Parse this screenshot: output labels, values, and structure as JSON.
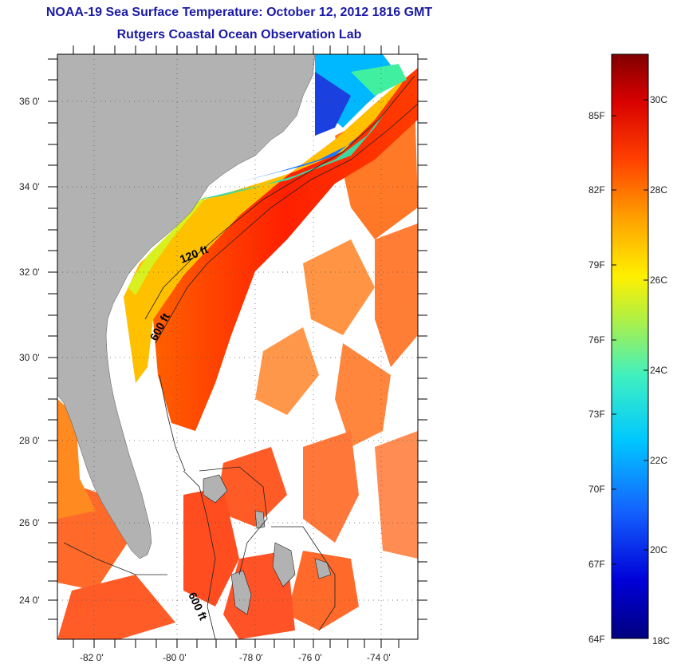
{
  "header": {
    "title": "NOAA-19 Sea Surface Temperature:  October 12, 2012 1816 GMT",
    "subtitle": "Rutgers Coastal Ocean Observation Lab"
  },
  "map": {
    "lat_labels": [
      "36 0'",
      "34 0'",
      "32 0'",
      "30 0'",
      "28 0'",
      "26 0'",
      "24 0'"
    ],
    "lon_labels": [
      "-82 0'",
      "-80 0'",
      "-78 0'",
      "-76 0'",
      "-74 0'"
    ],
    "contour_labels": [
      "120 ft",
      "600 ft",
      "600 ft"
    ],
    "land_color": "#b2b2b2",
    "no_data_color": "#ffffff"
  },
  "colorbar": {
    "fahrenheit_labels": [
      "85F",
      "82F",
      "79F",
      "76F",
      "73F",
      "70F",
      "67F",
      "64F"
    ],
    "celsius_labels": [
      "30C",
      "28C",
      "26C",
      "24C",
      "22C",
      "20C",
      "18C"
    ],
    "range_celsius": [
      18,
      31.2
    ]
  }
}
